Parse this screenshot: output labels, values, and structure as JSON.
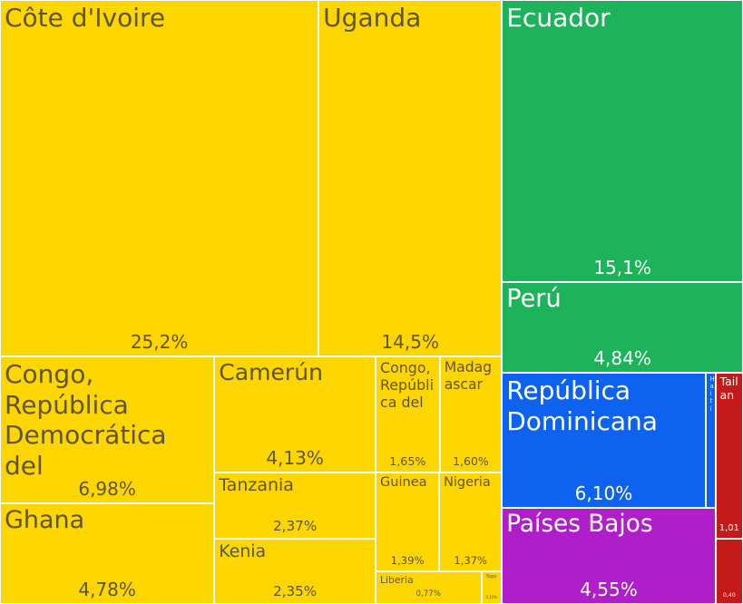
{
  "chart_data": {
    "type": "treemap",
    "series": [
      {
        "name": "Côte d'Ivoire",
        "value": 25.2,
        "value_label": "25,2%",
        "color": "#fdd600",
        "text_color": "#5e5630"
      },
      {
        "name": "Uganda",
        "value": 14.5,
        "value_label": "14,5%",
        "color": "#fdd600",
        "text_color": "#5e5630"
      },
      {
        "name": "Congo, República Democrática del",
        "value": 6.98,
        "value_label": "6,98%",
        "color": "#fdd600",
        "text_color": "#5e5630"
      },
      {
        "name": "Ghana",
        "value": 4.78,
        "value_label": "4,78%",
        "color": "#fdd600",
        "text_color": "#5e5630"
      },
      {
        "name": "Camerún",
        "value": 4.13,
        "value_label": "4,13%",
        "color": "#fdd600",
        "text_color": "#5e5630"
      },
      {
        "name": "Tanzania",
        "value": 2.37,
        "value_label": "2,37%",
        "color": "#fdd600",
        "text_color": "#5e5630"
      },
      {
        "name": "Kenia",
        "value": 2.35,
        "value_label": "2,35%",
        "color": "#fdd600",
        "text_color": "#5e5630"
      },
      {
        "name": "Congo, República del",
        "value": 1.65,
        "value_label": "1,65%",
        "color": "#fdd600",
        "text_color": "#5e5630"
      },
      {
        "name": "Madagascar",
        "value": 1.6,
        "value_label": "1,60%",
        "color": "#fdd600",
        "text_color": "#5e5630"
      },
      {
        "name": "Guinea",
        "value": 1.39,
        "value_label": "1,39%",
        "color": "#fdd600",
        "text_color": "#5e5630"
      },
      {
        "name": "Nigeria",
        "value": 1.37,
        "value_label": "1,37%",
        "color": "#fdd600",
        "text_color": "#5e5630"
      },
      {
        "name": "Liberia",
        "value": 0.77,
        "value_label": "0,77%",
        "color": "#fdd600",
        "text_color": "#5e5630"
      },
      {
        "name": "Togo",
        "value": 0.15,
        "value_label": "0,15%",
        "color": "#fdd600",
        "text_color": "#5e5630"
      },
      {
        "name": "Ecuador",
        "value": 15.1,
        "value_label": "15,1%",
        "color": "#1db35b",
        "text_color": "#ffffff"
      },
      {
        "name": "Perú",
        "value": 4.84,
        "value_label": "4,84%",
        "color": "#1db35b",
        "text_color": "#ffffff"
      },
      {
        "name": "República Dominicana",
        "value": 6.1,
        "value_label": "6,10%",
        "color": "#0d63f0",
        "text_color": "#ffffff"
      },
      {
        "name": "Haití",
        "value": 0.3,
        "value_label": null,
        "color": "#0d63f0",
        "text_color": "#ffffff"
      },
      {
        "name": "Países Bajos",
        "value": 4.55,
        "value_label": "4,55%",
        "color": "#b01ec9",
        "text_color": "#ffffff"
      },
      {
        "name": "Tailan",
        "value": 1.01,
        "value_label": "1,01",
        "color": "#c41a1a",
        "text_color": "#ffffff"
      },
      {
        "name": null,
        "value": 0.4,
        "value_label": "0,40",
        "color": "#c41a1a",
        "text_color": "#ffffff"
      }
    ]
  }
}
